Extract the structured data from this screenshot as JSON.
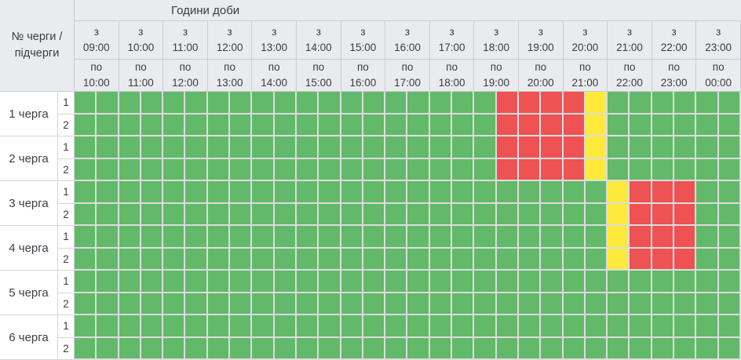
{
  "table": {
    "corner": {
      "line1": "№ черги /",
      "line2": "підчерги"
    },
    "hours_title": "Години доби",
    "time_columns": [
      {
        "from_word": "з",
        "from_time": "09:00",
        "to_word": "по",
        "to_time": "10:00"
      },
      {
        "from_word": "з",
        "from_time": "10:00",
        "to_word": "по",
        "to_time": "11:00"
      },
      {
        "from_word": "з",
        "from_time": "11:00",
        "to_word": "по",
        "to_time": "12:00"
      },
      {
        "from_word": "з",
        "from_time": "12:00",
        "to_word": "по",
        "to_time": "13:00"
      },
      {
        "from_word": "з",
        "from_time": "13:00",
        "to_word": "по",
        "to_time": "14:00"
      },
      {
        "from_word": "з",
        "from_time": "14:00",
        "to_word": "по",
        "to_time": "15:00"
      },
      {
        "from_word": "з",
        "from_time": "15:00",
        "to_word": "по",
        "to_time": "16:00"
      },
      {
        "from_word": "з",
        "from_time": "16:00",
        "to_word": "по",
        "to_time": "17:00"
      },
      {
        "from_word": "з",
        "from_time": "17:00",
        "to_word": "по",
        "to_time": "18:00"
      },
      {
        "from_word": "з",
        "from_time": "18:00",
        "to_word": "по",
        "to_time": "19:00"
      },
      {
        "from_word": "з",
        "from_time": "19:00",
        "to_word": "по",
        "to_time": "20:00"
      },
      {
        "from_word": "з",
        "from_time": "20:00",
        "to_word": "по",
        "to_time": "21:00"
      },
      {
        "from_word": "з",
        "from_time": "21:00",
        "to_word": "по",
        "to_time": "22:00"
      },
      {
        "from_word": "з",
        "from_time": "22:00",
        "to_word": "по",
        "to_time": "23:00"
      },
      {
        "from_word": "з",
        "from_time": "23:00",
        "to_word": "по",
        "to_time": "00:00"
      }
    ],
    "slot_minutes": 30,
    "groups": [
      {
        "label": "1 черга",
        "rows": [
          {
            "sub": "1",
            "cells": "gggggggggggggggggggrrrrygggggg"
          },
          {
            "sub": "2",
            "cells": "gggggggggggggggggggrrrrygggggg"
          }
        ]
      },
      {
        "label": "2 черга",
        "rows": [
          {
            "sub": "1",
            "cells": "gggggggggggggggggggrrrrygggggg"
          },
          {
            "sub": "2",
            "cells": "gggggggggggggggggggrrrrygggggg"
          }
        ]
      },
      {
        "label": "3 черга",
        "rows": [
          {
            "sub": "1",
            "cells": "ggggggggggggggggggggggggyrrrgg"
          },
          {
            "sub": "2",
            "cells": "ggggggggggggggggggggggggyrrrgg"
          }
        ]
      },
      {
        "label": "4 черга",
        "rows": [
          {
            "sub": "1",
            "cells": "ggggggggggggggggggggggggyrrrgg"
          },
          {
            "sub": "2",
            "cells": "ggggggggggggggggggggggggyrrrgg"
          }
        ]
      },
      {
        "label": "5 черга",
        "rows": [
          {
            "sub": "1",
            "cells": "gggggggggggggggggggggggggggggg"
          },
          {
            "sub": "2",
            "cells": "gggggggggggggggggggggggggggggg"
          }
        ]
      },
      {
        "label": "6 черга",
        "rows": [
          {
            "sub": "1",
            "cells": "gggggggggggggggggggggggggggggg"
          },
          {
            "sub": "2",
            "cells": "gggggggggggggggggggggggggggggg"
          }
        ]
      }
    ],
    "status_colors": {
      "g": "#62b969",
      "r": "#ee5253",
      "y": "#ffe93b"
    },
    "header_bg": "#e9ebee"
  }
}
